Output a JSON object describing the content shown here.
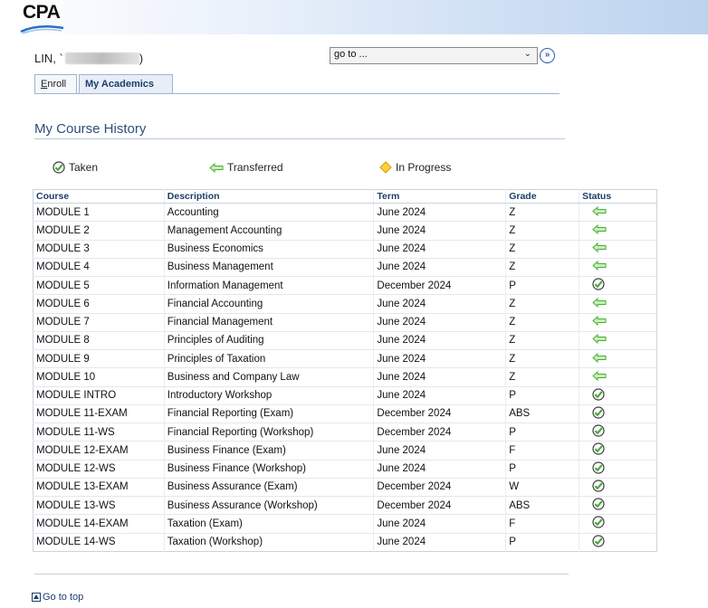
{
  "brand": {
    "logo_text": "CPA"
  },
  "student": {
    "name_prefix": "LIN, `",
    "name_suffix": ")"
  },
  "nav": {
    "goto_value": "go to ..."
  },
  "tabs": [
    {
      "label": "Enroll",
      "accesskey": "E"
    },
    {
      "label": "My Academics"
    }
  ],
  "page": {
    "section_title": "My Course History",
    "go_to_top": "Go to top"
  },
  "legend": {
    "taken": "Taken",
    "transferred": "Transferred",
    "in_progress": "In Progress"
  },
  "colors": {
    "taken": "#4bab3c",
    "transferred": "#4bab3c",
    "in_progress": "#f0b400",
    "header": "#1d3e6b"
  },
  "table": {
    "columns": [
      "Course",
      "Description",
      "Term",
      "Grade",
      "Status"
    ],
    "rows": [
      {
        "course": "MODULE 1",
        "description": "Accounting",
        "term": "June 2024",
        "grade": "Z",
        "status": "transferred"
      },
      {
        "course": "MODULE 2",
        "description": "Management Accounting",
        "term": "June 2024",
        "grade": "Z",
        "status": "transferred"
      },
      {
        "course": "MODULE 3",
        "description": "Business Economics",
        "term": "June 2024",
        "grade": "Z",
        "status": "transferred"
      },
      {
        "course": "MODULE 4",
        "description": "Business Management",
        "term": "June 2024",
        "grade": "Z",
        "status": "transferred"
      },
      {
        "course": "MODULE 5",
        "description": "Information Management",
        "term": "December 2024",
        "grade": "P",
        "status": "taken"
      },
      {
        "course": "MODULE 6",
        "description": "Financial Accounting",
        "term": "June 2024",
        "grade": "Z",
        "status": "transferred"
      },
      {
        "course": "MODULE 7",
        "description": "Financial Management",
        "term": "June 2024",
        "grade": "Z",
        "status": "transferred"
      },
      {
        "course": "MODULE 8",
        "description": "Principles of Auditing",
        "term": "June 2024",
        "grade": "Z",
        "status": "transferred"
      },
      {
        "course": "MODULE 9",
        "description": "Principles of Taxation",
        "term": "June 2024",
        "grade": "Z",
        "status": "transferred"
      },
      {
        "course": "MODULE 10",
        "description": "Business and Company Law",
        "term": "June 2024",
        "grade": "Z",
        "status": "transferred"
      },
      {
        "course": "MODULE INTRO",
        "description": "Introductory Workshop",
        "term": "June 2024",
        "grade": "P",
        "status": "taken"
      },
      {
        "course": "MODULE 11-EXAM",
        "description": "Financial Reporting (Exam)",
        "term": "December 2024",
        "grade": "ABS",
        "status": "taken"
      },
      {
        "course": "MODULE 11-WS",
        "description": "Financial Reporting (Workshop)",
        "term": "December 2024",
        "grade": "P",
        "status": "taken"
      },
      {
        "course": "MODULE 12-EXAM",
        "description": "Business Finance (Exam)",
        "term": "June 2024",
        "grade": "F",
        "status": "taken"
      },
      {
        "course": "MODULE 12-WS",
        "description": "Business Finance (Workshop)",
        "term": "June 2024",
        "grade": "P",
        "status": "taken"
      },
      {
        "course": "MODULE 13-EXAM",
        "description": "Business Assurance (Exam)",
        "term": "December 2024",
        "grade": "W",
        "status": "taken"
      },
      {
        "course": "MODULE 13-WS",
        "description": "Business Assurance (Workshop)",
        "term": "December 2024",
        "grade": "ABS",
        "status": "taken"
      },
      {
        "course": "MODULE 14-EXAM",
        "description": "Taxation (Exam)",
        "term": "June 2024",
        "grade": "F",
        "status": "taken"
      },
      {
        "course": "MODULE 14-WS",
        "description": "Taxation (Workshop)",
        "term": "June 2024",
        "grade": "P",
        "status": "taken"
      }
    ]
  }
}
